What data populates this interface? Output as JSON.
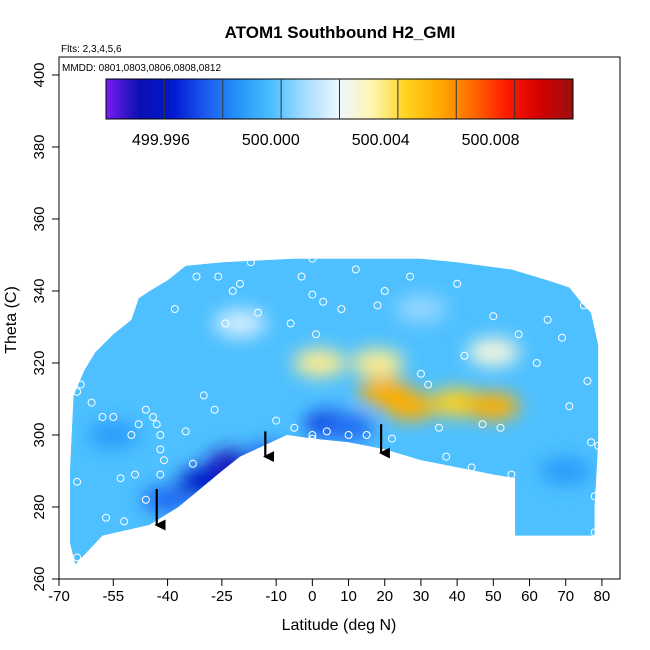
{
  "chart_data": {
    "type": "heatmap",
    "title": "ATOM1 Southbound H2_GMI",
    "subtitle_flights": "Flts: 2,3,4,5,6",
    "subtitle_dates": "MMDD: 0801,0803,0806,0808,0812",
    "xlabel": "Latitude (deg N)",
    "ylabel": "Theta (C)",
    "xlim": [
      -70,
      85
    ],
    "ylim": [
      260,
      405
    ],
    "x_ticks": [
      -70,
      -55,
      -40,
      -25,
      -10,
      0,
      10,
      20,
      30,
      40,
      50,
      60,
      70,
      80
    ],
    "y_ticks": [
      260,
      280,
      300,
      320,
      340,
      360,
      380,
      400
    ],
    "colorbar": {
      "range": [
        499.994,
        500.011
      ],
      "tick_labels": [
        "499.996",
        "500.000",
        "500.004",
        "500.008"
      ],
      "tick_values": [
        499.996,
        500.0,
        500.004,
        500.008
      ],
      "color_stops": [
        "#7a1cf0",
        "#0a10b0",
        "#0018d0",
        "#1e5af0",
        "#2596f8",
        "#4ec0ff",
        "#a8ddff",
        "#eef8ff",
        "#fff5b0",
        "#ffd21e",
        "#ffaa00",
        "#ff6a00",
        "#ff1a00",
        "#d40000",
        "#9a1010"
      ]
    },
    "coverage_outline": [
      [
        -65.5,
        264
      ],
      [
        -58,
        272
      ],
      [
        -45,
        275
      ],
      [
        -37,
        280
      ],
      [
        -25,
        290
      ],
      [
        -20,
        294
      ],
      [
        -7,
        300
      ],
      [
        0,
        299
      ],
      [
        10,
        298
      ],
      [
        20,
        296
      ],
      [
        30,
        293
      ],
      [
        40,
        291
      ],
      [
        50,
        289
      ],
      [
        56,
        288
      ],
      [
        56,
        272
      ],
      [
        78,
        272
      ],
      [
        78,
        280
      ],
      [
        79,
        298
      ],
      [
        79,
        325
      ],
      [
        77,
        334
      ],
      [
        75,
        336
      ],
      [
        71,
        341
      ],
      [
        65,
        343
      ],
      [
        55,
        346
      ],
      [
        40,
        348
      ],
      [
        30,
        349
      ],
      [
        -5,
        349
      ],
      [
        -25,
        348
      ],
      [
        -35,
        347
      ],
      [
        -40,
        343
      ],
      [
        -45,
        340
      ],
      [
        -48,
        338
      ],
      [
        -50,
        332
      ],
      [
        -55,
        328
      ],
      [
        -58,
        325
      ],
      [
        -60,
        323
      ],
      [
        -63,
        318
      ],
      [
        -66,
        311
      ],
      [
        -67,
        290
      ],
      [
        -67,
        270
      ]
    ],
    "field_features": [
      {
        "lat": -22,
        "theta": 292,
        "value": 499.995,
        "note": "minimum"
      },
      {
        "lat": -30,
        "theta": 287,
        "value": 499.996
      },
      {
        "lat": -40,
        "theta": 282,
        "value": 499.998
      },
      {
        "lat": -12,
        "theta": 294,
        "value": 499.998
      },
      {
        "lat": 5,
        "theta": 303,
        "value": 499.997
      },
      {
        "lat": 10,
        "theta": 302,
        "value": 499.998
      },
      {
        "lat": 20,
        "theta": 312,
        "value": 500.006
      },
      {
        "lat": 27,
        "theta": 308,
        "value": 500.006
      },
      {
        "lat": 40,
        "theta": 309,
        "value": 500.005
      },
      {
        "lat": 50,
        "theta": 308,
        "value": 500.006
      },
      {
        "lat": 2,
        "theta": 320,
        "value": 500.004
      },
      {
        "lat": 18,
        "theta": 320,
        "value": 500.004
      },
      {
        "lat": -20,
        "theta": 331,
        "value": 500.002
      },
      {
        "lat": 30,
        "theta": 335,
        "value": 500.001
      },
      {
        "lat": 50,
        "theta": 323,
        "value": 500.003
      },
      {
        "lat": -55,
        "theta": 300,
        "value": 499.999
      },
      {
        "lat": 70,
        "theta": 290,
        "value": 499.999
      }
    ],
    "observation_points": [
      [
        -65,
        312
      ],
      [
        -65,
        287
      ],
      [
        -65,
        266
      ],
      [
        -64,
        314
      ],
      [
        -61,
        309
      ],
      [
        -58,
        305
      ],
      [
        -57,
        277
      ],
      [
        -55,
        305
      ],
      [
        -53,
        288
      ],
      [
        -52,
        276
      ],
      [
        -50,
        300
      ],
      [
        -49,
        289
      ],
      [
        -48,
        303
      ],
      [
        -46,
        307
      ],
      [
        -46,
        282
      ],
      [
        -44,
        305
      ],
      [
        -43,
        303
      ],
      [
        -42,
        300
      ],
      [
        -42,
        296
      ],
      [
        -42,
        289
      ],
      [
        -41,
        293
      ],
      [
        -38,
        335
      ],
      [
        -35,
        301
      ],
      [
        -33,
        292
      ],
      [
        -32,
        344
      ],
      [
        -30,
        311
      ],
      [
        -27,
        307
      ],
      [
        -26,
        344
      ],
      [
        -24,
        331
      ],
      [
        -22,
        340
      ],
      [
        -20,
        342
      ],
      [
        -18,
        292
      ],
      [
        -17,
        348
      ],
      [
        -15,
        334
      ],
      [
        -10,
        304
      ],
      [
        -6,
        331
      ],
      [
        -5,
        302
      ],
      [
        -3,
        344
      ],
      [
        0,
        300
      ],
      [
        0,
        299
      ],
      [
        0,
        339
      ],
      [
        0,
        349
      ],
      [
        1,
        328
      ],
      [
        3,
        337
      ],
      [
        4,
        301
      ],
      [
        8,
        335
      ],
      [
        10,
        300
      ],
      [
        12,
        346
      ],
      [
        15,
        300
      ],
      [
        18,
        336
      ],
      [
        20,
        340
      ],
      [
        22,
        299
      ],
      [
        27,
        344
      ],
      [
        30,
        317
      ],
      [
        32,
        314
      ],
      [
        35,
        302
      ],
      [
        37,
        294
      ],
      [
        40,
        342
      ],
      [
        42,
        322
      ],
      [
        44,
        291
      ],
      [
        47,
        303
      ],
      [
        50,
        333
      ],
      [
        52,
        302
      ],
      [
        55,
        289
      ],
      [
        57,
        328
      ],
      [
        62,
        320
      ],
      [
        65,
        332
      ],
      [
        69,
        327
      ],
      [
        71,
        308
      ],
      [
        75,
        336
      ],
      [
        76,
        315
      ],
      [
        77,
        298
      ],
      [
        78,
        283
      ],
      [
        78,
        273
      ],
      [
        79,
        297
      ]
    ],
    "arrows": [
      {
        "lat": -43,
        "theta_start": 285,
        "theta_end": 275
      },
      {
        "lat": -13,
        "theta_start": 301,
        "theta_end": 294
      },
      {
        "lat": 19,
        "theta_start": 303,
        "theta_end": 295
      }
    ]
  }
}
